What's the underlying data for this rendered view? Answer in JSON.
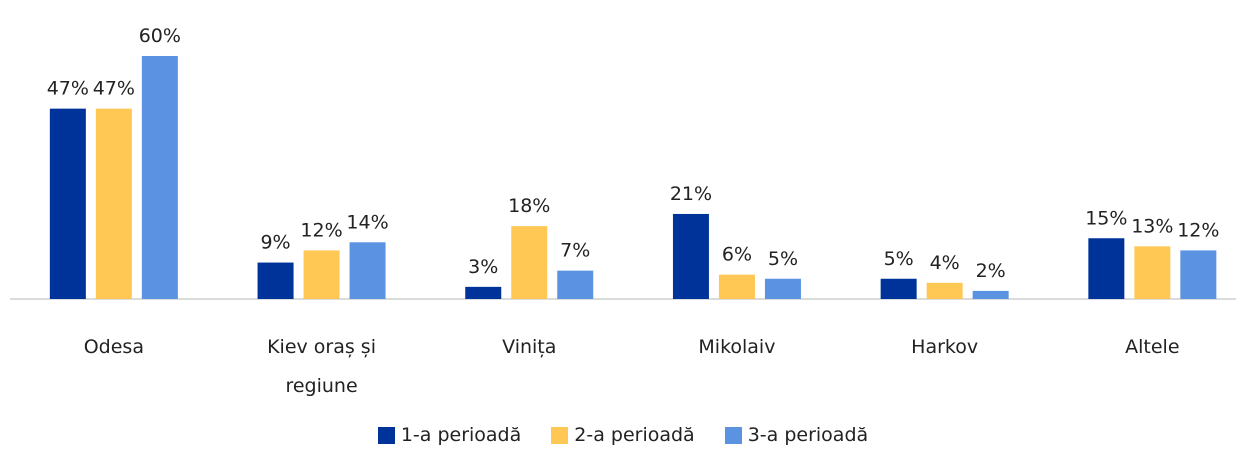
{
  "chart_data": {
    "type": "bar",
    "categories": [
      "Odesa",
      "Kiev oraș și regiune",
      "Vinița",
      "Mikolaiv",
      "Harkov",
      "Altele"
    ],
    "series": [
      {
        "name": "1-a perioadă",
        "color": "#00339a",
        "values": [
          47,
          9,
          3,
          21,
          5,
          15
        ],
        "value_labels": [
          "47%",
          "9%",
          "3%",
          "21%",
          "5%",
          "15%"
        ]
      },
      {
        "name": "2-a perioadă",
        "color": "#ffc855",
        "values": [
          47,
          12,
          18,
          6,
          4,
          13
        ],
        "value_labels": [
          "47%",
          "12%",
          "18%",
          "6%",
          "4%",
          "13%"
        ]
      },
      {
        "name": "3-a perioadă",
        "color": "#5b93e2",
        "values": [
          60,
          14,
          7,
          5,
          2,
          12
        ],
        "value_labels": [
          "60%",
          "14%",
          "7%",
          "5%",
          "2%",
          "12%"
        ]
      }
    ]
  }
}
